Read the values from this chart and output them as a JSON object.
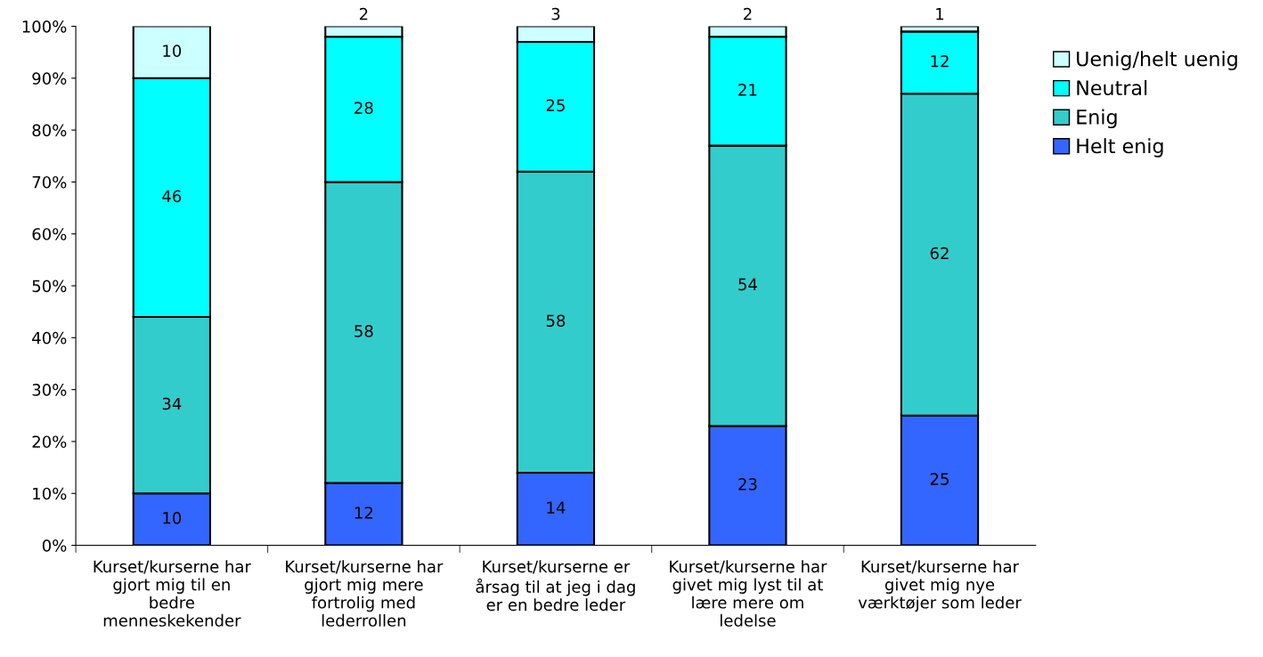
{
  "chart_data": {
    "type": "bar",
    "stacked": true,
    "categories": [
      "Kurset/kurserne har\ngjort mig til en\nbedre\nmenneskekender",
      "Kurset/kurserne har\ngjort mig mere\nfortrolig med\nlederrollen",
      "Kurset/kurserne er\nårsag til at jeg i dag\ner en bedre leder",
      "Kurset/kurserne har\ngivet mig lyst til at\nlære mere om\nledelse",
      "Kurset/kurserne har\ngivet mig nye\nværktøjer som leder"
    ],
    "series": [
      {
        "name": "Helt enig",
        "color": "#3366ff",
        "values": [
          10,
          12,
          14,
          23,
          25
        ]
      },
      {
        "name": "Enig",
        "color": "#33cccc",
        "values": [
          34,
          58,
          58,
          54,
          62
        ]
      },
      {
        "name": "Neutral",
        "color": "#00ffff",
        "values": [
          46,
          28,
          25,
          21,
          12
        ]
      },
      {
        "name": "Uenig/helt uenig",
        "color": "#ccffff",
        "values": [
          10,
          2,
          3,
          2,
          1
        ]
      }
    ],
    "ylim": [
      0,
      100
    ],
    "yticks": [
      {
        "value": 0,
        "label": "0%"
      },
      {
        "value": 10,
        "label": "10%"
      },
      {
        "value": 20,
        "label": "20%"
      },
      {
        "value": 30,
        "label": "30%"
      },
      {
        "value": 40,
        "label": "40%"
      },
      {
        "value": 50,
        "label": "50%"
      },
      {
        "value": 60,
        "label": "60%"
      },
      {
        "value": 70,
        "label": "70%"
      },
      {
        "value": 80,
        "label": "80%"
      },
      {
        "value": 90,
        "label": "90%"
      },
      {
        "value": 100,
        "label": "100%"
      }
    ],
    "data_labels": true,
    "legend": "right",
    "grid": false
  }
}
